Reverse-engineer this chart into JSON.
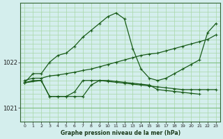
{
  "title": "Graphe pression niveau de la mer (hPa)",
  "background_color": "#d4eeed",
  "line_color": "#1a5c1a",
  "grid_color_v": "#c8e8c8",
  "grid_color_h": "#c8e8c8",
  "xlim": [
    -0.5,
    23.5
  ],
  "ylim": [
    1020.7,
    1023.3
  ],
  "yticks": [
    1021,
    1022
  ],
  "xticks": [
    0,
    1,
    2,
    3,
    4,
    5,
    6,
    7,
    8,
    9,
    10,
    11,
    12,
    13,
    14,
    15,
    16,
    17,
    18,
    19,
    20,
    21,
    22,
    23
  ],
  "series": [
    {
      "x": [
        0,
        1,
        2,
        3,
        4,
        5,
        6,
        7,
        8,
        9,
        10,
        11,
        12,
        13,
        14,
        15,
        16,
        17,
        18,
        19,
        20,
        21,
        22,
        23
      ],
      "y": [
        1021.55,
        1021.75,
        1021.75,
        1022.0,
        1022.15,
        1022.2,
        1022.35,
        1022.55,
        1022.7,
        1022.85,
        1023.0,
        1023.08,
        1022.95,
        1022.3,
        1021.85,
        1021.65,
        1021.6,
        1021.65,
        1021.75,
        1021.85,
        1021.95,
        1022.05,
        1022.65,
        1022.85
      ]
    },
    {
      "x": [
        0,
        1,
        2,
        3,
        4,
        5,
        6,
        7,
        8,
        9,
        10,
        11,
        12,
        13,
        14,
        15,
        16,
        17,
        18,
        19,
        20,
        21,
        22,
        23
      ],
      "y": [
        1021.6,
        1021.65,
        1021.65,
        1021.7,
        1021.72,
        1021.75,
        1021.78,
        1021.82,
        1021.85,
        1021.9,
        1021.95,
        1022.0,
        1022.05,
        1022.1,
        1022.15,
        1022.18,
        1022.2,
        1022.25,
        1022.3,
        1022.35,
        1022.4,
        1022.45,
        1022.5,
        1022.6
      ]
    },
    {
      "x": [
        0,
        1,
        2,
        3,
        4,
        5,
        6,
        7,
        8,
        9,
        10,
        11,
        12,
        13,
        14,
        15,
        16,
        17,
        18,
        19,
        20,
        21,
        22,
        23
      ],
      "y": [
        1021.55,
        1021.6,
        1021.6,
        1021.25,
        1021.25,
        1021.25,
        1021.35,
        1021.6,
        1021.6,
        1021.6,
        1021.58,
        1021.56,
        1021.54,
        1021.52,
        1021.5,
        1021.48,
        1021.46,
        1021.44,
        1021.42,
        1021.4,
        1021.4,
        1021.4,
        1021.4,
        1021.4
      ]
    },
    {
      "x": [
        0,
        2,
        3,
        4,
        5,
        6,
        7,
        8,
        9,
        10,
        11,
        12,
        13,
        14,
        15,
        16,
        17,
        18,
        19,
        20,
        21
      ],
      "y": [
        1021.55,
        1021.6,
        1021.25,
        1021.25,
        1021.25,
        1021.25,
        1021.25,
        1021.5,
        1021.6,
        1021.6,
        1021.58,
        1021.56,
        1021.54,
        1021.52,
        1021.5,
        1021.4,
        1021.38,
        1021.36,
        1021.34,
        1021.32,
        1021.3
      ]
    }
  ]
}
